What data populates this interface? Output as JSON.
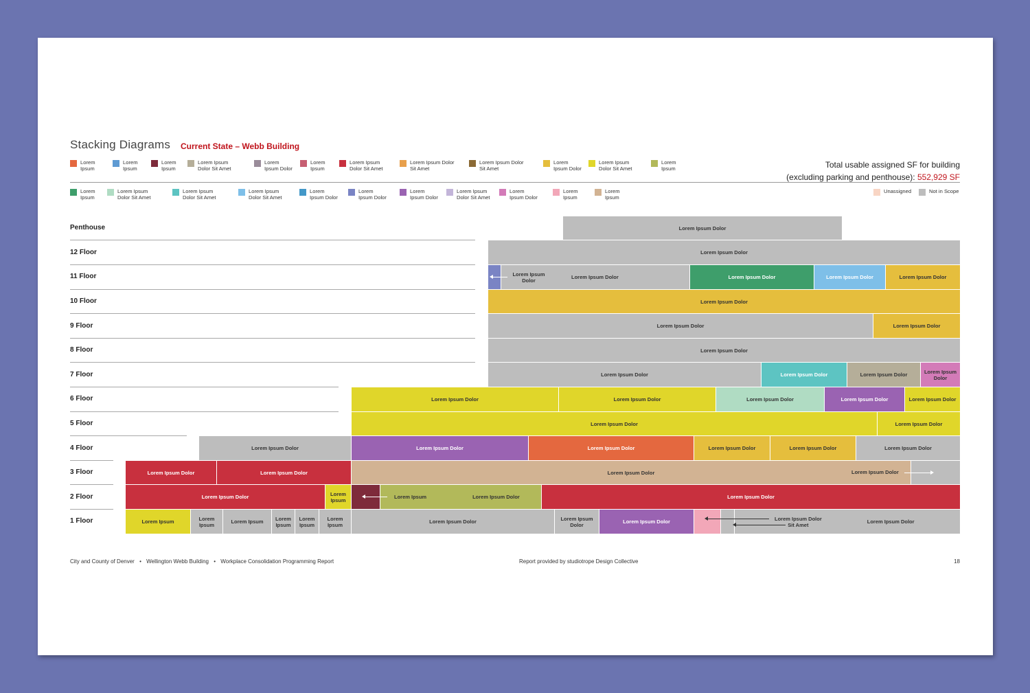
{
  "header": {
    "title": "Stacking Diagrams",
    "subtitle": "Current State – Webb Building",
    "total_line1": "Total usable assigned SF for building",
    "total_line2": "(excluding parking and penthouse): ",
    "total_value": "552,929 SF"
  },
  "legend_row1": [
    {
      "label": "Lorem\nIpsum",
      "color": "#e4683f"
    },
    {
      "label": "Lorem\nIpsum",
      "color": "#5f9bd3"
    },
    {
      "label": "Lorem\nIpsum",
      "color": "#7e2b3b"
    },
    {
      "label": "Lorem Ipsum\nDolor Sit Amet",
      "color": "#b5ae99"
    },
    {
      "label": "Lorem\nIpsum Dolor",
      "color": "#9a8c9a"
    },
    {
      "label": "Lorem\nIpsum",
      "color": "#c75f72"
    },
    {
      "label": "Lorem Ipsum\nDolor Sit Amet",
      "color": "#c8303e"
    },
    {
      "label": "Lorem Ipsum Dolor\nSit Amet",
      "color": "#e8a04c"
    },
    {
      "label": "Lorem Ipsum Dolor\nSit Amet",
      "color": "#8b6a35"
    },
    {
      "label": "Lorem\nIpsum Dolor",
      "color": "#e5be3d"
    },
    {
      "label": "Lorem Ipsum\nDolor Sit Amet",
      "color": "#e0d62a"
    },
    {
      "label": "Lorem\nIpsum",
      "color": "#b2b95a"
    }
  ],
  "legend_row2": [
    {
      "label": "Lorem\nIpsum",
      "color": "#3e9e6b"
    },
    {
      "label": "Lorem Ipsum\nDolor Sit Amet",
      "color": "#b0dcc3"
    },
    {
      "label": "Lorem Ipsum\nDolor Sit Amet",
      "color": "#5dc4c2"
    },
    {
      "label": "Lorem Ipsum\nDolor Sit Amet",
      "color": "#7ebfe8"
    },
    {
      "label": "Lorem\nIpsum Dolor",
      "color": "#4398c8"
    },
    {
      "label": "Lorem\nIpsum Dolor",
      "color": "#7a84c4"
    },
    {
      "label": "Lorem\nIpsum Dolor",
      "color": "#9a63b2"
    },
    {
      "label": "Lorem Ipsum\nDolor Sit Amet",
      "color": "#c3b5d9"
    },
    {
      "label": "Lorem\nIpsum Dolor",
      "color": "#d37bb8"
    },
    {
      "label": "Lorem\nIpsum",
      "color": "#f2a7b8"
    },
    {
      "label": "Lorem\nIpsum",
      "color": "#d2b393"
    }
  ],
  "legend_extra": [
    {
      "label": "Unassigned",
      "color": "#f8d5c4"
    },
    {
      "label": "Not in Scope",
      "color": "#bdbdbd"
    }
  ],
  "floors": [
    "Penthouse",
    "12 Floor",
    "11 Floor",
    "10 Floor",
    "9 Floor",
    "8 Floor",
    "7 Floor",
    "6 Floor",
    "5 Floor",
    "4 Floor",
    "3 Floor",
    "2 Floor",
    "1 Floor"
  ],
  "blocks": {
    "ph_1": "Lorem Ipsum Dolor",
    "f12_1": "Lorem Ipsum Dolor",
    "f11_2": "Lorem Ipsum\nDolor",
    "f11_3": "Lorem Ipsum Dolor",
    "f11_4": "Lorem Ipsum Dolor",
    "f11_5": "Lorem Ipsum Dolor",
    "f11_6": "Lorem Ipsum Dolor",
    "f10_1": "Lorem Ipsum Dolor",
    "f9_1": "Lorem Ipsum Dolor",
    "f9_2": "Lorem Ipsum Dolor",
    "f8_1": "Lorem Ipsum Dolor",
    "f7_1": "Lorem Ipsum Dolor",
    "f7_2": "Lorem Ipsum Dolor",
    "f7_3": "Lorem Ipsum Dolor",
    "f7_4": "Lorem Ipsum\nDolor",
    "f6_1": "Lorem Ipsum Dolor",
    "f6_2": "Lorem Ipsum Dolor",
    "f6_3": "Lorem Ipsum Dolor",
    "f6_4": "Lorem Ipsum Dolor",
    "f6_5": "Lorem Ipsum Dolor",
    "f5_1": "Lorem Ipsum Dolor",
    "f5_2": "Lorem Ipsum Dolor",
    "f4_1": "Lorem Ipsum Dolor",
    "f4_2": "Lorem Ipsum Dolor",
    "f4_3": "Lorem Ipsum Dolor",
    "f4_4": "Lorem Ipsum Dolor",
    "f4_5": "Lorem Ipsum Dolor",
    "f4_6": "Lorem Ipsum Dolor",
    "f3_1": "Lorem Ipsum Dolor",
    "f3_2": "Lorem Ipsum Dolor",
    "f3_3": "Lorem Ipsum Dolor",
    "f3_4": "Lorem Ipsum Dolor",
    "f2_1": "Lorem Ipsum Dolor",
    "f2_2": "Lorem\nIpsum",
    "f2_4a": "Lorem Ipsum",
    "f2_4b": "Lorem Ipsum Dolor",
    "f2_5": "Lorem Ipsum Dolor",
    "f1_1": "Lorem Ipsum",
    "f1_2": "Lorem\nIpsum",
    "f1_3": "Lorem Ipsum",
    "f1_4": "Lorem\nIpsum",
    "f1_5": "Lorem\nIpsum",
    "f1_6": "Lorem\nIpsum",
    "f1_7": "Lorem Ipsum Dolor",
    "f1_8": "Lorem Ipsum\nDolor",
    "f1_9": "Lorem Ipsum Dolor",
    "f1_12": "Lorem Ipsum Dolor\nSit Amet",
    "f1_13": "Lorem Ipsum Dolor"
  },
  "footer": {
    "org": "City and County of Denver",
    "building": "Wellington Webb Building",
    "report": "Workplace Consolidation Programming Report",
    "credit": "Report provided by studiotrope Design Collective",
    "page": "18"
  }
}
